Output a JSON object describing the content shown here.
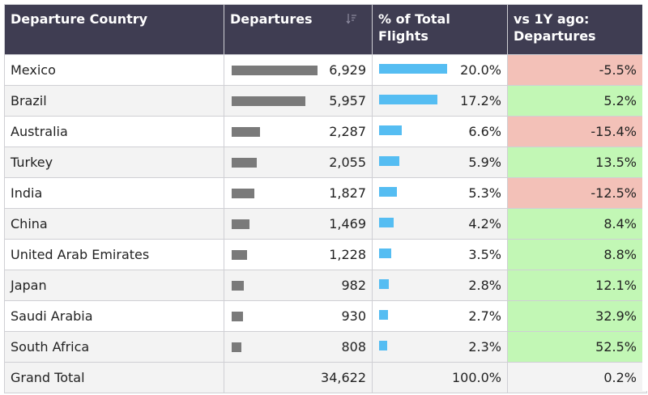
{
  "headers": {
    "country": "Departure Country",
    "departures": "Departures",
    "pct_line1": "% of Total",
    "pct_line2": "Flights",
    "vs_line1": "vs 1Y ago:",
    "vs_line2": "Departures"
  },
  "rows": [
    {
      "country": "Mexico",
      "departures": "6,929",
      "dep_value": 6929,
      "pct": "20.0%",
      "pct_value": 20.0,
      "vs": "-5.5%"
    },
    {
      "country": "Brazil",
      "departures": "5,957",
      "dep_value": 5957,
      "pct": "17.2%",
      "pct_value": 17.2,
      "vs": "5.2%"
    },
    {
      "country": "Australia",
      "departures": "2,287",
      "dep_value": 2287,
      "pct": "6.6%",
      "pct_value": 6.6,
      "vs": "-15.4%"
    },
    {
      "country": "Turkey",
      "departures": "2,055",
      "dep_value": 2055,
      "pct": "5.9%",
      "pct_value": 5.9,
      "vs": "13.5%"
    },
    {
      "country": "India",
      "departures": "1,827",
      "dep_value": 1827,
      "pct": "5.3%",
      "pct_value": 5.3,
      "vs": "-12.5%"
    },
    {
      "country": "China",
      "departures": "1,469",
      "dep_value": 1469,
      "pct": "4.2%",
      "pct_value": 4.2,
      "vs": "8.4%"
    },
    {
      "country": "United Arab Emirates",
      "departures": "1,228",
      "dep_value": 1228,
      "pct": "3.5%",
      "pct_value": 3.5,
      "vs": "8.8%"
    },
    {
      "country": "Japan",
      "departures": "982",
      "dep_value": 982,
      "pct": "2.8%",
      "pct_value": 2.8,
      "vs": "12.1%"
    },
    {
      "country": "Saudi Arabia",
      "departures": "930",
      "dep_value": 930,
      "pct": "2.7%",
      "pct_value": 2.7,
      "vs": "32.9%"
    },
    {
      "country": "South Africa",
      "departures": "808",
      "dep_value": 808,
      "pct": "2.3%",
      "pct_value": 2.3,
      "vs": "52.5%"
    }
  ],
  "grand_total": {
    "label": "Grand Total",
    "departures": "34,622",
    "pct": "100.0%",
    "vs": "0.2%"
  },
  "colors": {
    "header_bg": "#3f3d52",
    "dep_bar": "#7a7a7a",
    "pct_bar": "#55bdf2",
    "negative": "#f3c1b8",
    "positive": "#c2f7b5"
  },
  "icons": {
    "sort": "sort-descending-icon"
  }
}
